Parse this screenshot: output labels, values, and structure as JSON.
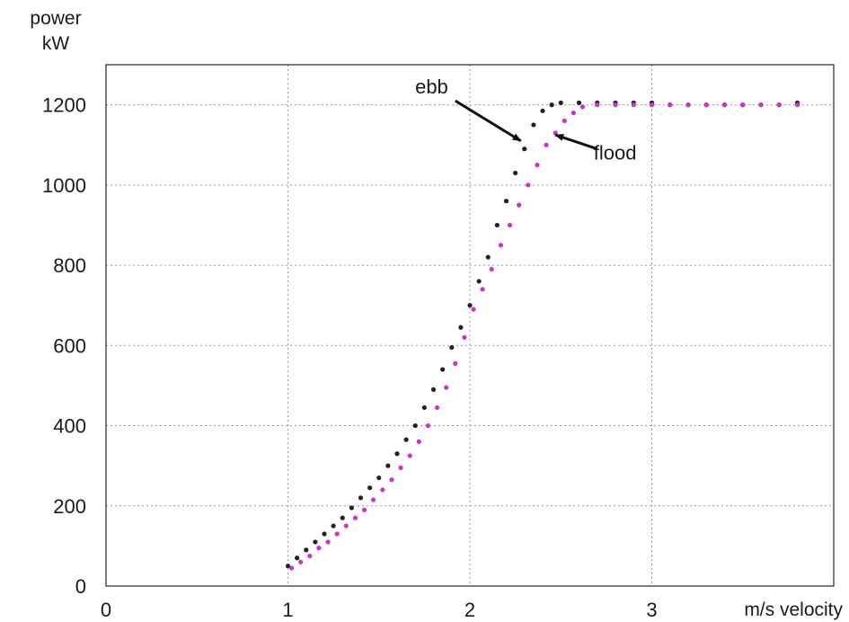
{
  "chart_data": {
    "type": "scatter",
    "title": "",
    "ylabel_line1": "power",
    "ylabel_line2": "kW",
    "xlabel": "m/s velocity",
    "xlim": [
      0,
      4
    ],
    "ylim": [
      0,
      1300
    ],
    "x_ticks": [
      0,
      1,
      2,
      3
    ],
    "y_ticks": [
      0,
      200,
      400,
      600,
      800,
      1000,
      1200
    ],
    "grid": true,
    "colors": {
      "ebb": "#222222",
      "flood": "#cc33cc",
      "grid": "#9a9a9a",
      "axis": "#333333"
    },
    "annotations": [
      {
        "id": "ebb",
        "text": "ebb",
        "from": [
          1.92,
          1210
        ],
        "to": [
          2.28,
          1110
        ]
      },
      {
        "id": "flood",
        "text": "flood",
        "from": [
          2.7,
          1090
        ],
        "to": [
          2.47,
          1125
        ]
      }
    ],
    "series": [
      {
        "name": "ebb",
        "color": "#222222",
        "points": [
          [
            1.0,
            50
          ],
          [
            1.05,
            70
          ],
          [
            1.1,
            90
          ],
          [
            1.15,
            110
          ],
          [
            1.2,
            130
          ],
          [
            1.25,
            150
          ],
          [
            1.3,
            170
          ],
          [
            1.35,
            195
          ],
          [
            1.4,
            220
          ],
          [
            1.45,
            245
          ],
          [
            1.5,
            270
          ],
          [
            1.55,
            300
          ],
          [
            1.6,
            330
          ],
          [
            1.65,
            365
          ],
          [
            1.7,
            400
          ],
          [
            1.75,
            445
          ],
          [
            1.8,
            490
          ],
          [
            1.85,
            540
          ],
          [
            1.9,
            595
          ],
          [
            1.95,
            645
          ],
          [
            2.0,
            700
          ],
          [
            2.05,
            760
          ],
          [
            2.1,
            820
          ],
          [
            2.15,
            900
          ],
          [
            2.2,
            960
          ],
          [
            2.25,
            1030
          ],
          [
            2.3,
            1090
          ],
          [
            2.35,
            1150
          ],
          [
            2.4,
            1185
          ],
          [
            2.45,
            1200
          ],
          [
            2.5,
            1205
          ],
          [
            2.6,
            1205
          ],
          [
            2.7,
            1205
          ],
          [
            2.8,
            1205
          ],
          [
            2.9,
            1205
          ],
          [
            3.0,
            1205
          ],
          [
            3.1,
            1200
          ],
          [
            3.2,
            1200
          ],
          [
            3.3,
            1200
          ],
          [
            3.4,
            1200
          ],
          [
            3.5,
            1200
          ],
          [
            3.6,
            1200
          ],
          [
            3.7,
            1200
          ],
          [
            3.8,
            1205
          ]
        ]
      },
      {
        "name": "flood",
        "color": "#cc33cc",
        "points": [
          [
            1.02,
            45
          ],
          [
            1.07,
            60
          ],
          [
            1.12,
            75
          ],
          [
            1.17,
            95
          ],
          [
            1.22,
            110
          ],
          [
            1.27,
            130
          ],
          [
            1.32,
            150
          ],
          [
            1.37,
            170
          ],
          [
            1.42,
            190
          ],
          [
            1.47,
            215
          ],
          [
            1.52,
            240
          ],
          [
            1.57,
            265
          ],
          [
            1.62,
            295
          ],
          [
            1.67,
            325
          ],
          [
            1.72,
            360
          ],
          [
            1.77,
            400
          ],
          [
            1.82,
            445
          ],
          [
            1.87,
            495
          ],
          [
            1.92,
            555
          ],
          [
            1.97,
            620
          ],
          [
            2.02,
            690
          ],
          [
            2.07,
            740
          ],
          [
            2.12,
            790
          ],
          [
            2.17,
            850
          ],
          [
            2.22,
            900
          ],
          [
            2.27,
            950
          ],
          [
            2.32,
            1000
          ],
          [
            2.37,
            1050
          ],
          [
            2.42,
            1100
          ],
          [
            2.47,
            1130
          ],
          [
            2.52,
            1160
          ],
          [
            2.57,
            1180
          ],
          [
            2.62,
            1195
          ],
          [
            2.7,
            1200
          ],
          [
            2.8,
            1200
          ],
          [
            2.9,
            1200
          ],
          [
            3.0,
            1200
          ],
          [
            3.1,
            1200
          ],
          [
            3.2,
            1200
          ],
          [
            3.3,
            1200
          ],
          [
            3.4,
            1200
          ],
          [
            3.5,
            1200
          ],
          [
            3.6,
            1200
          ],
          [
            3.7,
            1200
          ],
          [
            3.8,
            1200
          ]
        ]
      }
    ]
  }
}
